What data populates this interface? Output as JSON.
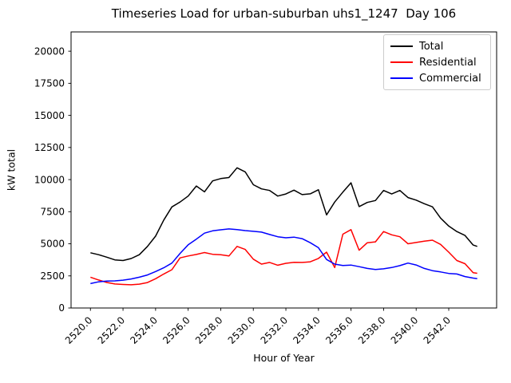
{
  "title": "Timeseries Load for urban-suburban uhs1_1247  Day 106",
  "xlabel": "Hour of Year",
  "ylabel": "kW total",
  "legend": [
    {
      "label": "Total",
      "color": "#000000"
    },
    {
      "label": "Residential",
      "color": "#ff0000"
    },
    {
      "label": "Commercial",
      "color": "#0000ff"
    }
  ],
  "colors": {
    "frame": "#000000",
    "background": "#ffffff",
    "legend_border": "#cccccc"
  },
  "chart_data": {
    "type": "line",
    "title": "Timeseries Load for urban-suburban uhs1_1247  Day 106",
    "xlabel": "Hour of Year",
    "ylabel": "kW total",
    "legend_position": "upper right",
    "grid": false,
    "xlim": [
      2518.81,
      2544.94
    ],
    "ylim": [
      0,
      21500
    ],
    "xticks": [
      2520,
      2522,
      2524,
      2526,
      2528,
      2530,
      2532,
      2534,
      2536,
      2538,
      2540,
      2542
    ],
    "xtick_labels": [
      "2520.0",
      "2522.0",
      "2524.0",
      "2526.0",
      "2528.0",
      "2530.0",
      "2532.0",
      "2534.0",
      "2536.0",
      "2538.0",
      "2540.0",
      "2542.0"
    ],
    "yticks": [
      0,
      2500,
      5000,
      7500,
      10000,
      12500,
      15000,
      17500,
      20000
    ],
    "ytick_labels": [
      "0",
      "2500",
      "5000",
      "7500",
      "10000",
      "12500",
      "15000",
      "17500",
      "20000"
    ],
    "x": [
      2520.0,
      2520.5,
      2521.0,
      2521.5,
      2522.0,
      2522.5,
      2523.0,
      2523.5,
      2524.0,
      2524.5,
      2525.0,
      2525.5,
      2526.0,
      2526.5,
      2527.0,
      2527.5,
      2528.0,
      2528.5,
      2529.0,
      2529.5,
      2530.0,
      2530.5,
      2531.0,
      2531.5,
      2532.0,
      2532.5,
      2533.0,
      2533.5,
      2534.0,
      2534.5,
      2535.0,
      2535.5,
      2536.0,
      2536.5,
      2537.0,
      2537.5,
      2538.0,
      2538.5,
      2539.0,
      2539.5,
      2540.0,
      2540.5,
      2541.0,
      2541.5,
      2542.0,
      2542.5,
      2543.0,
      2543.5,
      2543.75
    ],
    "series": [
      {
        "name": "Total",
        "color": "#000000",
        "values": [
          4300,
          4150,
          3960,
          3750,
          3700,
          3850,
          4150,
          4800,
          5600,
          6850,
          7870,
          8250,
          8720,
          9500,
          9050,
          9900,
          10080,
          10160,
          10920,
          10600,
          9600,
          9280,
          9150,
          8720,
          8880,
          9180,
          8830,
          8890,
          9210,
          7250,
          8250,
          9020,
          9750,
          7900,
          8220,
          8370,
          9150,
          8880,
          9150,
          8600,
          8400,
          8120,
          7880,
          7000,
          6380,
          5950,
          5650,
          4900,
          4800
        ]
      },
      {
        "name": "Residential",
        "color": "#ff0000",
        "values": [
          2400,
          2180,
          1990,
          1870,
          1830,
          1810,
          1860,
          1980,
          2280,
          2650,
          2980,
          3900,
          4050,
          4170,
          4320,
          4180,
          4150,
          4050,
          4800,
          4560,
          3800,
          3420,
          3550,
          3330,
          3480,
          3560,
          3550,
          3600,
          3860,
          4350,
          3150,
          5750,
          6100,
          4500,
          5080,
          5150,
          5950,
          5700,
          5550,
          5000,
          5100,
          5200,
          5280,
          4950,
          4350,
          3700,
          3450,
          2750,
          2700
        ]
      },
      {
        "name": "Commercial",
        "color": "#0000ff",
        "values": [
          1900,
          2040,
          2100,
          2110,
          2170,
          2260,
          2400,
          2570,
          2840,
          3130,
          3500,
          4250,
          4920,
          5360,
          5830,
          6010,
          6090,
          6160,
          6100,
          6030,
          5970,
          5910,
          5720,
          5550,
          5470,
          5520,
          5400,
          5080,
          4700,
          3780,
          3420,
          3310,
          3340,
          3220,
          3080,
          3000,
          3050,
          3150,
          3300,
          3500,
          3350,
          3080,
          2910,
          2810,
          2690,
          2650,
          2450,
          2330,
          2280
        ]
      }
    ]
  }
}
